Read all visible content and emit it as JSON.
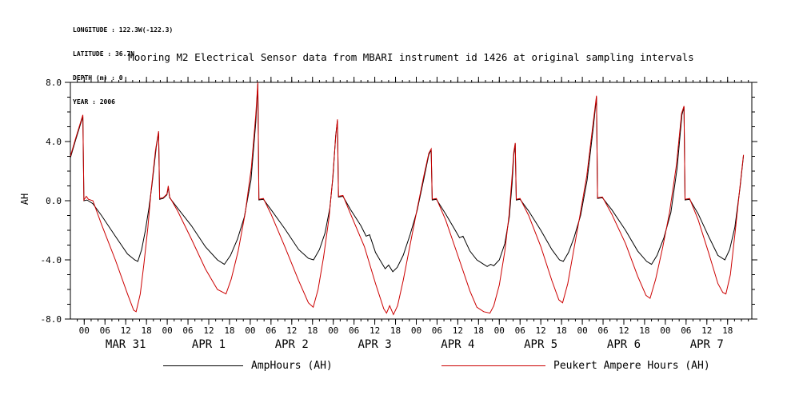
{
  "header": {
    "longitude": "LONGITUDE : 122.3W(-122.3)",
    "latitude": "LATITUDE : 36.7N",
    "depth": "DEPTH (m) : 0",
    "year": "YEAR : 2006"
  },
  "title": "Mooring M2 Electrical Sensor data from MBARI instrument id 1426 at original sampling intervals",
  "legend": [
    {
      "label": "AmpHours (AH)",
      "color": "#000000"
    },
    {
      "label": "Peukert Ampere Hours (AH)",
      "color": "#cc0000"
    }
  ],
  "chart_data": {
    "type": "line",
    "title": "Mooring M2 Electrical Sensor data from MBARI instrument id 1426 at original sampling intervals",
    "xlabel": "",
    "ylabel": "AH",
    "ylim": [
      -8,
      8
    ],
    "xlim_hours": [
      -4,
      193
    ],
    "grid": false,
    "legend_position": "bottom",
    "yticks": {
      "major_step": 4,
      "minor_step": 1,
      "labels": [
        "-8.0",
        "-4.0",
        "0.0",
        "4.0",
        "8.0"
      ]
    },
    "xticks": {
      "major_start": 0,
      "major_end": 186,
      "major_step": 6,
      "minor_start": -2,
      "minor_end": 192,
      "minor_step": 2,
      "label_mod": 24,
      "label_cycle": [
        "00",
        "06",
        "12",
        "18"
      ]
    },
    "day_labels": [
      {
        "label": "MAR 31",
        "t": 12
      },
      {
        "label": "APR 1",
        "t": 36
      },
      {
        "label": "APR 2",
        "t": 60
      },
      {
        "label": "APR 3",
        "t": 84
      },
      {
        "label": "APR 4",
        "t": 108
      },
      {
        "label": "APR 5",
        "t": 132
      },
      {
        "label": "APR 6",
        "t": 156
      },
      {
        "label": "APR 7",
        "t": 180
      }
    ],
    "series": [
      {
        "name": "AmpHours (AH)",
        "color": "#000000",
        "points": [
          [
            -4,
            2.9
          ],
          [
            -2.5,
            4.1
          ],
          [
            -0.4,
            5.7
          ],
          [
            -0.1,
            0.0
          ],
          [
            0.8,
            0.05
          ],
          [
            2.5,
            -0.2
          ],
          [
            5,
            -1.0
          ],
          [
            9,
            -2.4
          ],
          [
            12.5,
            -3.6
          ],
          [
            14.6,
            -4.0
          ],
          [
            15.5,
            -4.1
          ],
          [
            16.6,
            -3.3
          ],
          [
            17.7,
            -2.0
          ],
          [
            18.7,
            -0.5
          ],
          [
            19.6,
            1.1
          ],
          [
            20.8,
            3.6
          ],
          [
            21.5,
            4.6
          ],
          [
            21.8,
            0.1
          ],
          [
            22.8,
            0.15
          ],
          [
            23.9,
            0.4
          ],
          [
            24.3,
            0.9
          ],
          [
            24.7,
            0.2
          ],
          [
            27,
            -0.5
          ],
          [
            31,
            -1.7
          ],
          [
            35,
            -3.1
          ],
          [
            38.5,
            -4.0
          ],
          [
            40.5,
            -4.3
          ],
          [
            42.3,
            -3.7
          ],
          [
            44.3,
            -2.6
          ],
          [
            46.3,
            -1.1
          ],
          [
            48.2,
            1.4
          ],
          [
            49.6,
            5.3
          ],
          [
            50.2,
            7.9
          ],
          [
            50.5,
            0.05
          ],
          [
            51.8,
            0.1
          ],
          [
            54,
            -0.6
          ],
          [
            58,
            -1.9
          ],
          [
            62,
            -3.3
          ],
          [
            64.8,
            -3.9
          ],
          [
            66.3,
            -4.0
          ],
          [
            68,
            -3.3
          ],
          [
            69.6,
            -2.2
          ],
          [
            71,
            -0.5
          ],
          [
            71.9,
            1.6
          ],
          [
            72.7,
            4.4
          ],
          [
            73.2,
            5.4
          ],
          [
            73.5,
            0.25
          ],
          [
            74.8,
            0.3
          ],
          [
            77,
            -0.6
          ],
          [
            80,
            -1.7
          ],
          [
            81.5,
            -2.4
          ],
          [
            82.5,
            -2.3
          ],
          [
            84.2,
            -3.5
          ],
          [
            86,
            -4.2
          ],
          [
            87,
            -4.6
          ],
          [
            88,
            -4.35
          ],
          [
            89.2,
            -4.8
          ],
          [
            90.5,
            -4.5
          ],
          [
            92.2,
            -3.7
          ],
          [
            94.2,
            -2.3
          ],
          [
            96.2,
            -0.7
          ],
          [
            98.2,
            1.5
          ],
          [
            99.6,
            3.1
          ],
          [
            100.3,
            3.45
          ],
          [
            100.6,
            0.05
          ],
          [
            101.8,
            0.1
          ],
          [
            104.5,
            -0.9
          ],
          [
            107,
            -1.9
          ],
          [
            108.5,
            -2.5
          ],
          [
            109.5,
            -2.4
          ],
          [
            111.5,
            -3.4
          ],
          [
            113.5,
            -4.0
          ],
          [
            115.5,
            -4.3
          ],
          [
            116.5,
            -4.45
          ],
          [
            117.5,
            -4.3
          ],
          [
            118.4,
            -4.4
          ],
          [
            120,
            -4.0
          ],
          [
            121.6,
            -2.9
          ],
          [
            122.9,
            -1.1
          ],
          [
            123.7,
            1.2
          ],
          [
            124.2,
            3.1
          ],
          [
            124.6,
            3.85
          ],
          [
            124.9,
            0.05
          ],
          [
            126,
            0.1
          ],
          [
            128.5,
            -0.7
          ],
          [
            132,
            -2.0
          ],
          [
            135.2,
            -3.3
          ],
          [
            137.4,
            -4.0
          ],
          [
            138.5,
            -4.1
          ],
          [
            140,
            -3.5
          ],
          [
            141.6,
            -2.5
          ],
          [
            143.5,
            -1.0
          ],
          [
            145.4,
            1.4
          ],
          [
            147.2,
            5.0
          ],
          [
            148.1,
            7.0
          ],
          [
            148.4,
            0.15
          ],
          [
            149.8,
            0.2
          ],
          [
            152.5,
            -0.6
          ],
          [
            156.5,
            -2.0
          ],
          [
            160,
            -3.4
          ],
          [
            162.6,
            -4.1
          ],
          [
            164,
            -4.3
          ],
          [
            165.6,
            -3.7
          ],
          [
            167.6,
            -2.5
          ],
          [
            169.6,
            -0.8
          ],
          [
            171.4,
            2.2
          ],
          [
            172.8,
            5.8
          ],
          [
            173.4,
            6.35
          ],
          [
            173.7,
            0.05
          ],
          [
            175,
            0.1
          ],
          [
            177.5,
            -0.9
          ],
          [
            180.5,
            -2.4
          ],
          [
            183.2,
            -3.7
          ],
          [
            185.2,
            -4.0
          ],
          [
            186.6,
            -3.3
          ],
          [
            188.1,
            -1.8
          ],
          [
            189.6,
            0.9
          ],
          [
            190.6,
            3.05
          ]
        ]
      },
      {
        "name": "Peukert Ampere Hours (AH)",
        "color": "#cc0000",
        "points": [
          [
            -4,
            3.0
          ],
          [
            -2.5,
            4.2
          ],
          [
            -0.4,
            5.8
          ],
          [
            -0.1,
            0.05
          ],
          [
            0.6,
            0.3
          ],
          [
            1.2,
            0.1
          ],
          [
            2.5,
            0.0
          ],
          [
            5,
            -1.6
          ],
          [
            9,
            -4.0
          ],
          [
            12.5,
            -6.3
          ],
          [
            14.3,
            -7.4
          ],
          [
            15.0,
            -7.5
          ],
          [
            16.2,
            -6.3
          ],
          [
            17.3,
            -4.2
          ],
          [
            18.4,
            -1.8
          ],
          [
            19.3,
            0.6
          ],
          [
            20.6,
            3.4
          ],
          [
            21.5,
            4.7
          ],
          [
            21.8,
            0.15
          ],
          [
            22.8,
            0.2
          ],
          [
            23.9,
            0.45
          ],
          [
            24.3,
            1.0
          ],
          [
            24.7,
            0.25
          ],
          [
            27,
            -0.7
          ],
          [
            31,
            -2.6
          ],
          [
            35,
            -4.6
          ],
          [
            38.5,
            -6.0
          ],
          [
            41,
            -6.3
          ],
          [
            42.5,
            -5.3
          ],
          [
            44.5,
            -3.4
          ],
          [
            46.5,
            -0.9
          ],
          [
            48.3,
            2.2
          ],
          [
            49.6,
            5.8
          ],
          [
            50.2,
            8.0
          ],
          [
            50.5,
            0.1
          ],
          [
            51.8,
            0.15
          ],
          [
            54,
            -0.9
          ],
          [
            58,
            -3.1
          ],
          [
            62,
            -5.4
          ],
          [
            64.8,
            -6.9
          ],
          [
            66.2,
            -7.2
          ],
          [
            67.6,
            -6.0
          ],
          [
            69.2,
            -3.8
          ],
          [
            70.8,
            -1.1
          ],
          [
            71.8,
            1.4
          ],
          [
            72.7,
            4.3
          ],
          [
            73.2,
            5.5
          ],
          [
            73.5,
            0.3
          ],
          [
            74.8,
            0.35
          ],
          [
            77,
            -0.9
          ],
          [
            81,
            -3.1
          ],
          [
            84.2,
            -5.6
          ],
          [
            86.6,
            -7.3
          ],
          [
            87.4,
            -7.6
          ],
          [
            88.3,
            -7.1
          ],
          [
            89.4,
            -7.7
          ],
          [
            90.6,
            -7.1
          ],
          [
            92.2,
            -5.4
          ],
          [
            94.2,
            -3.0
          ],
          [
            96.2,
            -0.6
          ],
          [
            98.2,
            1.7
          ],
          [
            99.6,
            3.2
          ],
          [
            100.3,
            3.5
          ],
          [
            100.6,
            0.1
          ],
          [
            101.8,
            0.15
          ],
          [
            104.5,
            -1.3
          ],
          [
            108,
            -3.7
          ],
          [
            111.5,
            -6.1
          ],
          [
            113.5,
            -7.2
          ],
          [
            115.5,
            -7.5
          ],
          [
            117.3,
            -7.6
          ],
          [
            118.4,
            -7.1
          ],
          [
            120,
            -5.7
          ],
          [
            121.6,
            -3.4
          ],
          [
            122.8,
            -1.0
          ],
          [
            123.6,
            1.4
          ],
          [
            124.2,
            3.3
          ],
          [
            124.6,
            3.9
          ],
          [
            124.9,
            0.1
          ],
          [
            126,
            0.15
          ],
          [
            128.5,
            -1.0
          ],
          [
            132,
            -3.1
          ],
          [
            135.2,
            -5.4
          ],
          [
            137.2,
            -6.7
          ],
          [
            138.3,
            -6.9
          ],
          [
            139.8,
            -5.6
          ],
          [
            141.4,
            -3.5
          ],
          [
            143.3,
            -1.0
          ],
          [
            145.3,
            1.7
          ],
          [
            147.1,
            5.2
          ],
          [
            148.1,
            7.1
          ],
          [
            148.4,
            0.2
          ],
          [
            149.8,
            0.25
          ],
          [
            152.5,
            -0.9
          ],
          [
            156.5,
            -2.9
          ],
          [
            160,
            -5.1
          ],
          [
            162.4,
            -6.4
          ],
          [
            163.6,
            -6.6
          ],
          [
            165.2,
            -5.3
          ],
          [
            167.2,
            -3.2
          ],
          [
            169.2,
            -0.8
          ],
          [
            171.2,
            2.4
          ],
          [
            172.7,
            5.9
          ],
          [
            173.4,
            6.4
          ],
          [
            173.7,
            0.1
          ],
          [
            175,
            0.15
          ],
          [
            177.5,
            -1.3
          ],
          [
            180.5,
            -3.5
          ],
          [
            183.2,
            -5.6
          ],
          [
            184.6,
            -6.2
          ],
          [
            185.5,
            -6.3
          ],
          [
            186.8,
            -5.0
          ],
          [
            188.2,
            -2.1
          ],
          [
            189.6,
            1.0
          ],
          [
            190.6,
            3.1
          ]
        ]
      }
    ]
  }
}
